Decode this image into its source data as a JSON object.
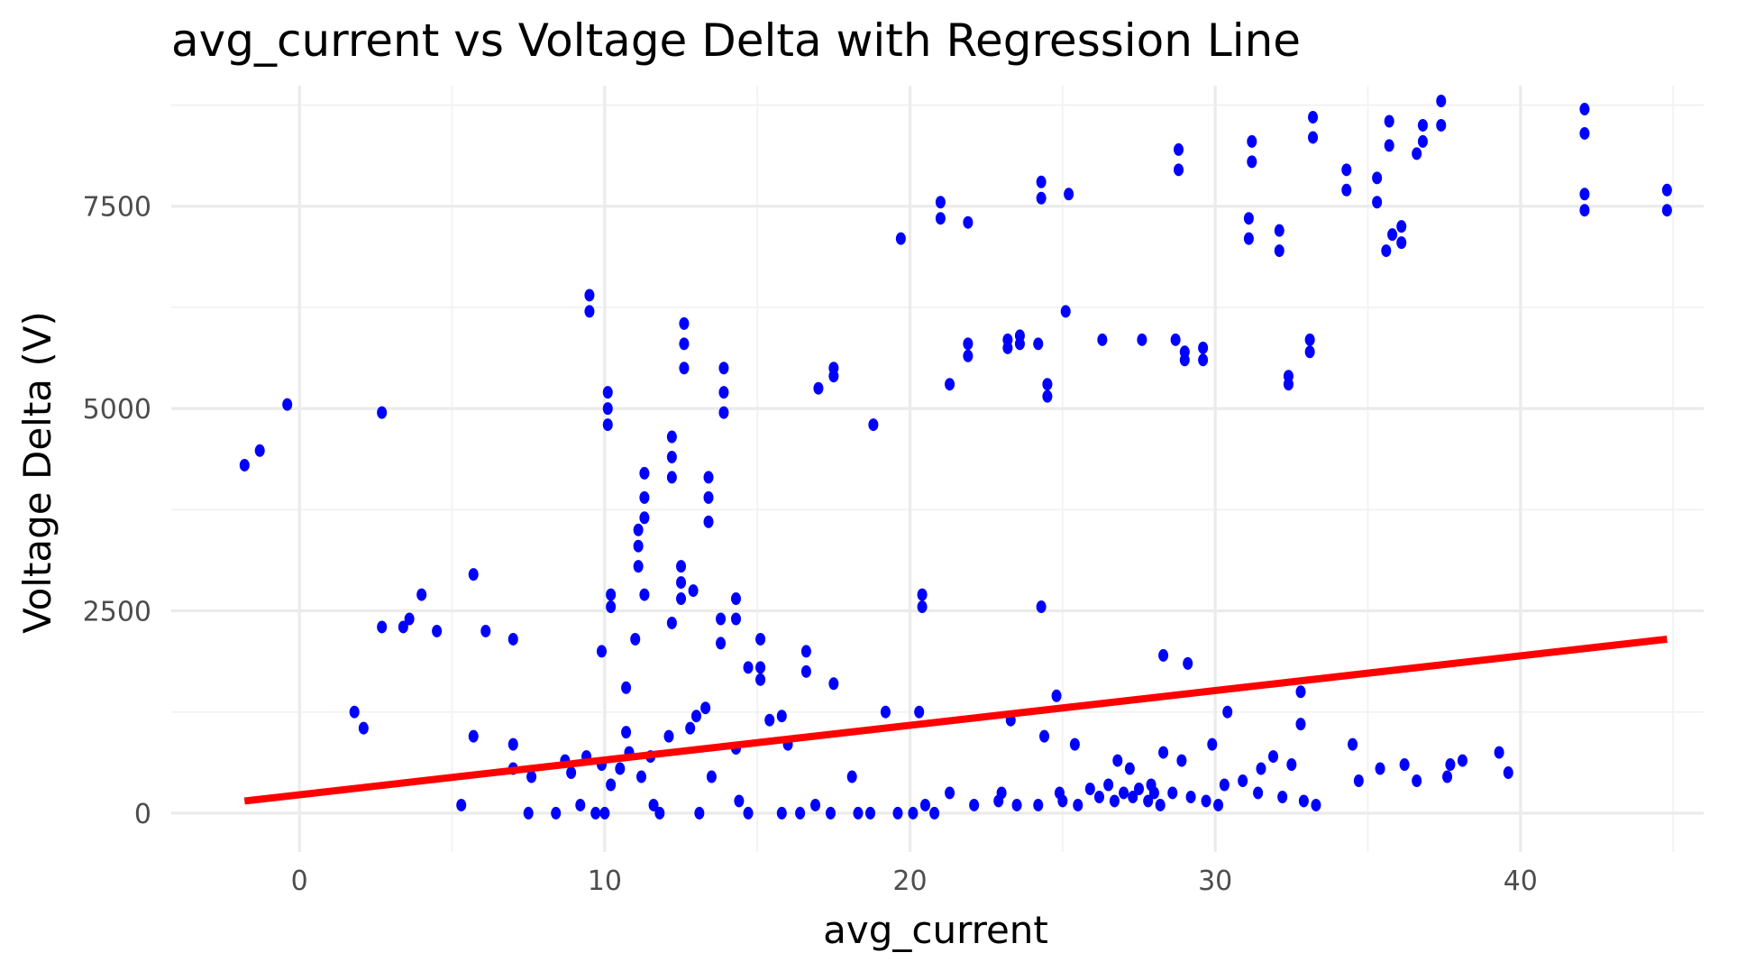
{
  "chart_data": {
    "type": "scatter",
    "title": "avg_current  vs Voltage Delta with Regression Line",
    "xlabel": "avg_current",
    "ylabel": "Voltage Delta (V)",
    "xlim": [
      -4.2,
      46
    ],
    "ylim": [
      -480,
      8990
    ],
    "x_ticks": [
      0,
      10,
      20,
      30,
      40
    ],
    "x_tick_labels": [
      "0",
      "10",
      "20",
      "30",
      "40"
    ],
    "y_ticks": [
      0,
      2500,
      5000,
      7500
    ],
    "y_tick_labels": [
      "0",
      "2500",
      "5000",
      "7500"
    ],
    "grid": true,
    "legend": "none",
    "colors": {
      "points": "#0000ff",
      "regression": "#ff0000",
      "grid": "#ebebeb",
      "background": "#ffffff"
    },
    "series": [
      {
        "type": "scatter",
        "points": [
          [
            -1.8,
            4300
          ],
          [
            -1.3,
            4480
          ],
          [
            -0.4,
            5050
          ],
          [
            2.7,
            4950
          ],
          [
            9.5,
            6200
          ],
          [
            9.5,
            6400
          ],
          [
            10.1,
            4800
          ],
          [
            10.1,
            5000
          ],
          [
            10.1,
            5200
          ],
          [
            12.6,
            5500
          ],
          [
            12.6,
            5800
          ],
          [
            12.6,
            6050
          ],
          [
            13.9,
            4950
          ],
          [
            13.9,
            5200
          ],
          [
            13.9,
            5500
          ],
          [
            12.2,
            4150
          ],
          [
            12.2,
            4400
          ],
          [
            12.2,
            4650
          ],
          [
            13.4,
            3600
          ],
          [
            13.4,
            3900
          ],
          [
            13.4,
            4150
          ],
          [
            11.1,
            3050
          ],
          [
            11.1,
            3300
          ],
          [
            11.1,
            3500
          ],
          [
            11.3,
            3650
          ],
          [
            11.3,
            3900
          ],
          [
            11.3,
            4200
          ],
          [
            11.3,
            2700
          ],
          [
            12.5,
            2650
          ],
          [
            12.5,
            2850
          ],
          [
            12.5,
            3050
          ],
          [
            10.2,
            2550
          ],
          [
            10.2,
            2700
          ],
          [
            14.3,
            2400
          ],
          [
            14.3,
            2650
          ],
          [
            13.8,
            2100
          ],
          [
            13.8,
            2400
          ],
          [
            11.0,
            2150
          ],
          [
            12.2,
            2350
          ],
          [
            12.9,
            2750
          ],
          [
            9.9,
            2000
          ],
          [
            15.1,
            2150
          ],
          [
            16.6,
            1750
          ],
          [
            16.6,
            2000
          ],
          [
            17.5,
            1600
          ],
          [
            18.8,
            4800
          ],
          [
            17.0,
            5250
          ],
          [
            17.5,
            5400
          ],
          [
            17.5,
            5500
          ],
          [
            19.7,
            7100
          ],
          [
            21.0,
            7350
          ],
          [
            21.0,
            7550
          ],
          [
            21.9,
            7300
          ],
          [
            21.3,
            5300
          ],
          [
            21.9,
            5650
          ],
          [
            21.9,
            5800
          ],
          [
            23.2,
            5750
          ],
          [
            23.2,
            5850
          ],
          [
            23.6,
            5800
          ],
          [
            23.6,
            5900
          ],
          [
            24.2,
            5800
          ],
          [
            24.5,
            5150
          ],
          [
            24.5,
            5300
          ],
          [
            24.3,
            7600
          ],
          [
            24.3,
            7800
          ],
          [
            25.1,
            6200
          ],
          [
            25.2,
            7650
          ],
          [
            26.3,
            5850
          ],
          [
            27.6,
            5850
          ],
          [
            28.7,
            5850
          ],
          [
            29.0,
            5600
          ],
          [
            29.0,
            5700
          ],
          [
            29.6,
            5600
          ],
          [
            29.6,
            5750
          ],
          [
            28.8,
            7950
          ],
          [
            28.8,
            8200
          ],
          [
            31.2,
            8050
          ],
          [
            31.2,
            8300
          ],
          [
            31.1,
            7100
          ],
          [
            31.1,
            7350
          ],
          [
            32.1,
            6950
          ],
          [
            32.1,
            7200
          ],
          [
            33.2,
            8350
          ],
          [
            33.2,
            8600
          ],
          [
            32.4,
            5300
          ],
          [
            32.4,
            5400
          ],
          [
            33.1,
            5700
          ],
          [
            33.1,
            5850
          ],
          [
            34.3,
            7700
          ],
          [
            34.3,
            7950
          ],
          [
            35.3,
            7550
          ],
          [
            35.3,
            7850
          ],
          [
            35.7,
            8250
          ],
          [
            35.7,
            8550
          ],
          [
            35.6,
            6950
          ],
          [
            35.8,
            7150
          ],
          [
            36.1,
            7050
          ],
          [
            36.1,
            7250
          ],
          [
            36.6,
            8150
          ],
          [
            36.8,
            8300
          ],
          [
            36.8,
            8500
          ],
          [
            37.4,
            8500
          ],
          [
            37.4,
            8800
          ],
          [
            42.1,
            8400
          ],
          [
            42.1,
            8700
          ],
          [
            42.1,
            7450
          ],
          [
            42.1,
            7650
          ],
          [
            44.8,
            7450
          ],
          [
            44.8,
            7700
          ],
          [
            5.7,
            2950
          ],
          [
            6.1,
            2250
          ],
          [
            7.0,
            2150
          ],
          [
            2.7,
            2300
          ],
          [
            3.4,
            2300
          ],
          [
            3.6,
            2400
          ],
          [
            4.0,
            2700
          ],
          [
            4.5,
            2250
          ],
          [
            1.8,
            1250
          ],
          [
            2.1,
            1050
          ],
          [
            20.4,
            2550
          ],
          [
            20.4,
            2700
          ],
          [
            24.3,
            2550
          ],
          [
            15.1,
            1650
          ],
          [
            15.1,
            1800
          ],
          [
            15.4,
            1150
          ],
          [
            15.8,
            1200
          ],
          [
            14.7,
            1800
          ],
          [
            19.2,
            1250
          ],
          [
            20.3,
            1250
          ],
          [
            23.3,
            1150
          ],
          [
            24.8,
            1450
          ],
          [
            28.3,
            1950
          ],
          [
            29.1,
            1850
          ],
          [
            30.4,
            1250
          ],
          [
            32.8,
            1500
          ],
          [
            32.8,
            1100
          ],
          [
            10.7,
            1550
          ],
          [
            10.7,
            1000
          ],
          [
            13.3,
            1300
          ],
          [
            13.0,
            1200
          ],
          [
            12.8,
            1050
          ],
          [
            12.1,
            950
          ],
          [
            11.5,
            700
          ],
          [
            5.7,
            950
          ],
          [
            7.0,
            850
          ],
          [
            7.0,
            550
          ],
          [
            5.3,
            100
          ],
          [
            7.6,
            450
          ],
          [
            8.7,
            650
          ],
          [
            9.4,
            700
          ],
          [
            10.2,
            350
          ],
          [
            10.8,
            750
          ],
          [
            11.2,
            450
          ],
          [
            13.5,
            450
          ],
          [
            14.3,
            800
          ],
          [
            16.0,
            850
          ],
          [
            18.1,
            450
          ],
          [
            24.4,
            950
          ],
          [
            25.4,
            850
          ],
          [
            26.8,
            650
          ],
          [
            27.2,
            550
          ],
          [
            27.9,
            350
          ],
          [
            28.3,
            750
          ],
          [
            28.9,
            650
          ],
          [
            29.9,
            850
          ],
          [
            30.3,
            350
          ],
          [
            30.9,
            400
          ],
          [
            31.5,
            550
          ],
          [
            31.9,
            700
          ],
          [
            32.5,
            600
          ],
          [
            34.5,
            850
          ],
          [
            34.7,
            400
          ],
          [
            35.4,
            550
          ],
          [
            36.2,
            600
          ],
          [
            36.6,
            400
          ],
          [
            37.6,
            450
          ],
          [
            37.7,
            600
          ],
          [
            38.1,
            650
          ],
          [
            39.3,
            750
          ],
          [
            39.6,
            500
          ],
          [
            7.5,
            0
          ],
          [
            8.4,
            0
          ],
          [
            9.7,
            0
          ],
          [
            10.0,
            0
          ],
          [
            11.8,
            0
          ],
          [
            13.1,
            0
          ],
          [
            14.7,
            0
          ],
          [
            15.8,
            0
          ],
          [
            16.4,
            0
          ],
          [
            17.4,
            0
          ],
          [
            18.3,
            0
          ],
          [
            18.7,
            0
          ],
          [
            19.6,
            0
          ],
          [
            20.1,
            0
          ],
          [
            20.8,
            0
          ],
          [
            22.1,
            100
          ],
          [
            22.9,
            150
          ],
          [
            23.5,
            100
          ],
          [
            24.2,
            100
          ],
          [
            25.0,
            150
          ],
          [
            25.5,
            100
          ],
          [
            26.2,
            200
          ],
          [
            26.7,
            150
          ],
          [
            27.3,
            200
          ],
          [
            27.8,
            150
          ],
          [
            28.2,
            100
          ],
          [
            28.6,
            250
          ],
          [
            29.2,
            200
          ],
          [
            29.7,
            150
          ],
          [
            30.1,
            100
          ],
          [
            31.4,
            250
          ],
          [
            32.2,
            200
          ],
          [
            32.9,
            150
          ],
          [
            33.3,
            100
          ],
          [
            21.3,
            250
          ],
          [
            23.0,
            250
          ],
          [
            25.9,
            300
          ],
          [
            26.5,
            350
          ],
          [
            27.0,
            250
          ],
          [
            27.5,
            300
          ],
          [
            28.0,
            250
          ],
          [
            9.2,
            100
          ],
          [
            11.6,
            100
          ],
          [
            8.9,
            500
          ],
          [
            9.9,
            600
          ],
          [
            10.5,
            550
          ],
          [
            14.4,
            150
          ],
          [
            16.9,
            100
          ],
          [
            20.5,
            100
          ],
          [
            24.9,
            250
          ]
        ]
      },
      {
        "type": "line",
        "regression": true,
        "x": [
          -1.8,
          44.8
        ],
        "y": [
          150,
          2150
        ]
      }
    ]
  }
}
